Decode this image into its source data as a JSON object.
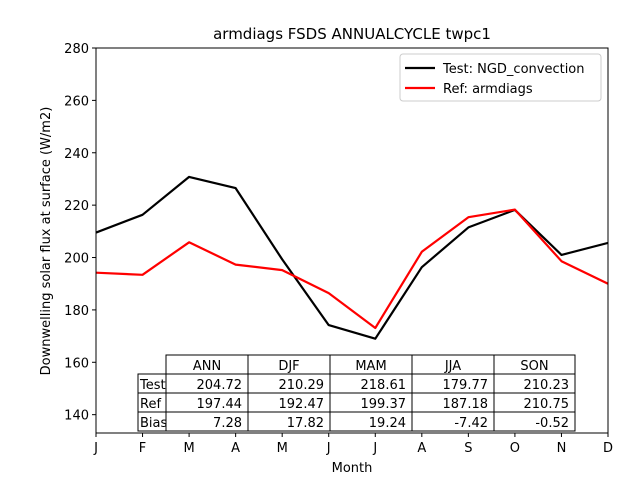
{
  "chart_data": {
    "type": "line",
    "title": "armdiags FSDS ANNUALCYCLE twpc1",
    "xlabel": "Month",
    "ylabel": "Downwelling solar flux at surface (W/m2)",
    "categories": [
      "J",
      "F",
      "M",
      "A",
      "M",
      "J",
      "J",
      "A",
      "S",
      "O",
      "N",
      "D"
    ],
    "ylim": [
      133,
      280
    ],
    "yticks": [
      140,
      160,
      180,
      200,
      220,
      240,
      260,
      280
    ],
    "grid": false,
    "legend_position": "top-right",
    "series": [
      {
        "name": "Test: NGD_convection",
        "color": "#000000",
        "values": [
          209.5,
          216.3,
          230.8,
          226.5,
          199.3,
          174.2,
          169.0,
          196.3,
          211.5,
          218.2,
          201.0,
          205.6
        ]
      },
      {
        "name": "Ref: armdiags",
        "color": "#ff0000",
        "values": [
          194.2,
          193.4,
          205.8,
          197.3,
          195.2,
          186.4,
          173.1,
          202.2,
          215.4,
          218.3,
          198.6,
          190.0
        ]
      }
    ],
    "table": {
      "columns": [
        "ANN",
        "DJF",
        "MAM",
        "JJA",
        "SON"
      ],
      "rows": [
        {
          "label": "Test",
          "values": [
            "204.72",
            "210.29",
            "218.61",
            "179.77",
            "210.23"
          ]
        },
        {
          "label": "Ref",
          "values": [
            "197.44",
            "192.47",
            "199.37",
            "187.18",
            "210.75"
          ]
        },
        {
          "label": "Bias",
          "values": [
            "7.28",
            "17.82",
            "19.24",
            "-7.42",
            "-0.52"
          ]
        }
      ]
    }
  }
}
